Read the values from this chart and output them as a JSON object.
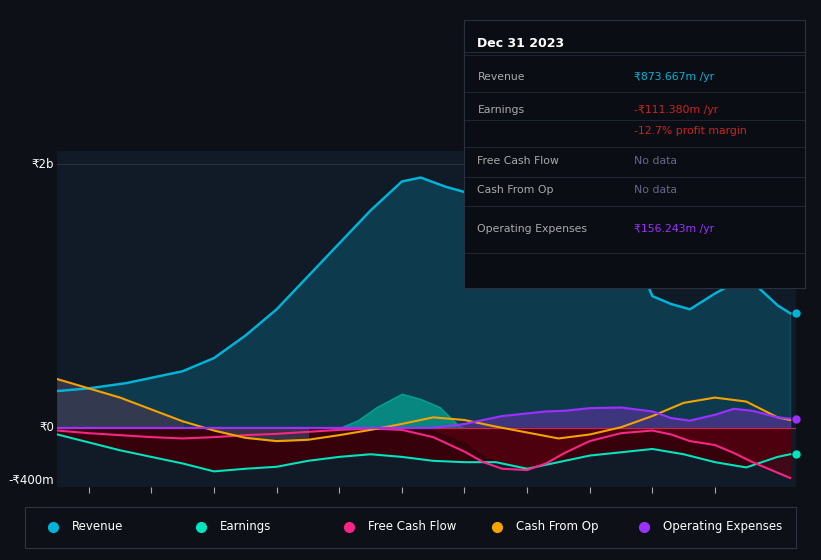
{
  "bg_color": "#0d1117",
  "chart_bg": "#111a27",
  "title": "Dec 31 2023",
  "y2b_label": "₹2b",
  "y0_label": "₹0",
  "yn400_label": "-₹400m",
  "ylim": [
    -450,
    2100
  ],
  "xlim": [
    2012.5,
    2024.3
  ],
  "xticks": [
    2013,
    2014,
    2015,
    2016,
    2017,
    2018,
    2019,
    2020,
    2021,
    2022,
    2023
  ],
  "legend": [
    "Revenue",
    "Earnings",
    "Free Cash Flow",
    "Cash From Op",
    "Operating Expenses"
  ],
  "legend_colors": [
    "#00b4d8",
    "#00e5c0",
    "#f72585",
    "#f4a300",
    "#9b30ff"
  ],
  "revenue_color": "#00b4d8",
  "earnings_color": "#00e5c0",
  "fcf_color": "#f72585",
  "cashop_color": "#f4a300",
  "opex_color": "#9b30ff",
  "zero_line_color": "#cc3355",
  "grid_color": "#2a3a4a",
  "info_box": {
    "date": "Dec 31 2023",
    "revenue_val": "₹873.667m /yr",
    "earnings_val": "-₹111.380m /yr",
    "margin_val": "-12.7% profit margin",
    "fcf_val": "No data",
    "cashop_val": "No data",
    "opex_val": "₹156.243m /yr"
  },
  "revenue_x": [
    2012.5,
    2013.0,
    2013.3,
    2013.6,
    2014.0,
    2014.5,
    2015.0,
    2015.5,
    2016.0,
    2016.5,
    2017.0,
    2017.5,
    2018.0,
    2018.3,
    2018.7,
    2019.0,
    2019.5,
    2020.0,
    2020.3,
    2020.7,
    2021.0,
    2021.5,
    2022.0,
    2022.3,
    2022.6,
    2023.0,
    2023.5,
    2024.0,
    2024.2
  ],
  "revenue_y": [
    280,
    300,
    320,
    340,
    380,
    430,
    530,
    700,
    900,
    1150,
    1400,
    1650,
    1870,
    1900,
    1830,
    1790,
    1760,
    1830,
    1820,
    1800,
    1720,
    1580,
    1000,
    940,
    900,
    1020,
    1150,
    930,
    870
  ],
  "earnings_x": [
    2012.5,
    2013.0,
    2013.5,
    2014.0,
    2014.5,
    2015.0,
    2015.5,
    2016.0,
    2016.5,
    2017.0,
    2017.5,
    2018.0,
    2018.5,
    2019.0,
    2019.5,
    2020.0,
    2020.5,
    2021.0,
    2021.5,
    2022.0,
    2022.5,
    2023.0,
    2023.5,
    2024.0,
    2024.2
  ],
  "earnings_y": [
    -50,
    -110,
    -170,
    -220,
    -270,
    -330,
    -310,
    -295,
    -250,
    -220,
    -200,
    -220,
    -250,
    -260,
    -260,
    -310,
    -260,
    -210,
    -185,
    -160,
    -200,
    -260,
    -300,
    -220,
    -200
  ],
  "fcf_x": [
    2012.5,
    2013.0,
    2013.5,
    2014.0,
    2014.5,
    2015.0,
    2015.5,
    2016.0,
    2016.5,
    2017.0,
    2017.5,
    2018.0,
    2018.5,
    2019.0,
    2019.3,
    2019.6,
    2020.0,
    2020.3,
    2020.6,
    2021.0,
    2021.5,
    2022.0,
    2022.3,
    2022.6,
    2023.0,
    2023.3,
    2023.6,
    2024.0,
    2024.2
  ],
  "fcf_y": [
    -20,
    -40,
    -55,
    -70,
    -80,
    -70,
    -55,
    -45,
    -30,
    -15,
    -5,
    -15,
    -70,
    -180,
    -260,
    -310,
    -320,
    -270,
    -190,
    -100,
    -40,
    -20,
    -50,
    -100,
    -130,
    -190,
    -260,
    -340,
    -380
  ],
  "cashop_x": [
    2012.5,
    2013.0,
    2013.5,
    2014.0,
    2014.5,
    2015.0,
    2015.5,
    2016.0,
    2016.5,
    2017.0,
    2017.5,
    2018.0,
    2018.5,
    2019.0,
    2019.5,
    2020.0,
    2020.5,
    2021.0,
    2021.5,
    2022.0,
    2022.5,
    2023.0,
    2023.5,
    2024.0,
    2024.2
  ],
  "cashop_y": [
    370,
    300,
    230,
    140,
    50,
    -20,
    -75,
    -100,
    -90,
    -55,
    -15,
    30,
    80,
    60,
    10,
    -35,
    -80,
    -50,
    5,
    90,
    190,
    230,
    200,
    80,
    60
  ],
  "opex_x": [
    2012.5,
    2013.0,
    2013.5,
    2014.0,
    2014.5,
    2015.0,
    2015.5,
    2016.0,
    2016.5,
    2017.0,
    2017.5,
    2018.0,
    2018.5,
    2019.0,
    2019.3,
    2019.6,
    2020.0,
    2020.3,
    2020.6,
    2021.0,
    2021.5,
    2022.0,
    2022.3,
    2022.6,
    2023.0,
    2023.3,
    2023.6,
    2024.0,
    2024.2
  ],
  "opex_y": [
    0,
    0,
    0,
    0,
    0,
    0,
    0,
    0,
    0,
    0,
    0,
    0,
    0,
    30,
    60,
    90,
    110,
    125,
    130,
    150,
    155,
    125,
    75,
    55,
    100,
    145,
    130,
    80,
    70
  ],
  "cashop_fill_x": [
    2012.5,
    2013.0,
    2013.5,
    2014.0,
    2014.5,
    2015.0,
    2015.5,
    2016.0,
    2016.5
  ],
  "cashop_fill_y": [
    370,
    300,
    230,
    140,
    50,
    -20,
    -75,
    -100,
    -90
  ],
  "teal_fill_x": [
    2017.0,
    2017.3,
    2017.6,
    2018.0,
    2018.3,
    2018.6,
    2018.9,
    2019.0
  ],
  "teal_fill_y": [
    0,
    60,
    160,
    260,
    220,
    160,
    20,
    0
  ]
}
